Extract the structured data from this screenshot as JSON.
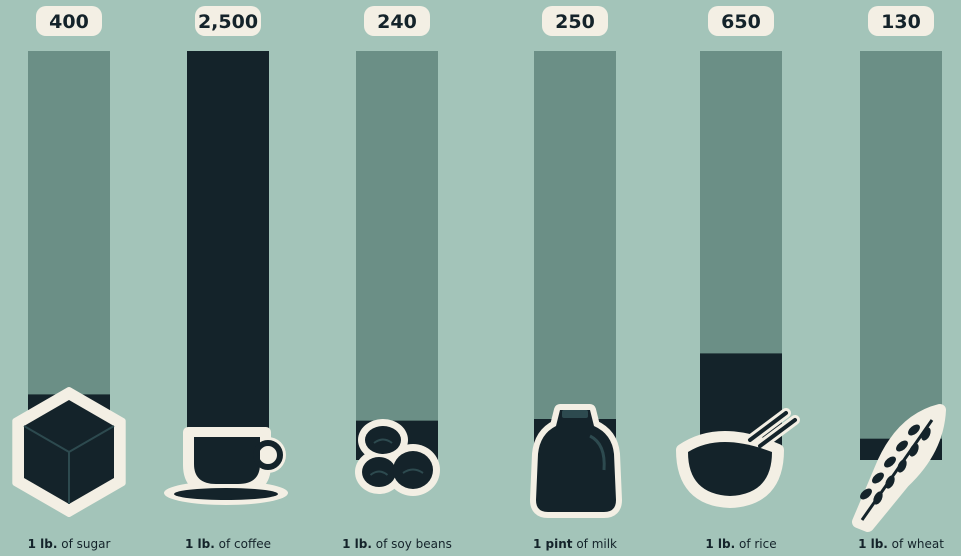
{
  "colors": {
    "background": "#a3c4b9",
    "bar_track": "#6b8f86",
    "bar_fill": "#14232a",
    "badge": "#f3efe4"
  },
  "chart_data": {
    "type": "bar",
    "categories": [
      "sugar",
      "coffee",
      "soy beans",
      "milk",
      "rice",
      "wheat"
    ],
    "values": [
      400,
      2500,
      240,
      250,
      650,
      130
    ],
    "value_labels": [
      "400",
      "2,500",
      "240",
      "250",
      "650",
      "130"
    ],
    "ylim": [
      0,
      2500
    ],
    "title": "",
    "xlabel": "",
    "ylabel": "",
    "grid": false,
    "icons": [
      "sugar-cube-icon",
      "coffee-cup-icon",
      "soy-beans-icon",
      "milk-jug-icon",
      "rice-bowl-icon",
      "wheat-icon"
    ],
    "captions": [
      {
        "bold": "1 lb.",
        "text": " of sugar"
      },
      {
        "bold": "1 lb.",
        "text": " of coffee"
      },
      {
        "bold": "1 lb.",
        "text": " of soy beans"
      },
      {
        "bold": "1 pint",
        "text": " of milk"
      },
      {
        "bold": "1 lb.",
        "text": " of rice"
      },
      {
        "bold": "1 lb.",
        "text": " of wheat"
      }
    ]
  }
}
